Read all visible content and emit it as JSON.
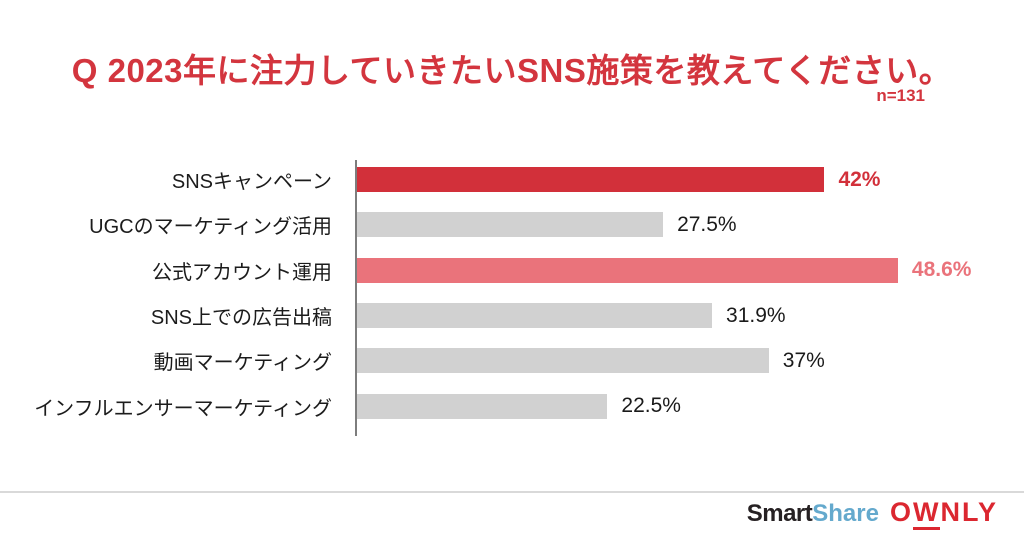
{
  "header": {
    "title": "Q 2023年に注力していきたいSNS施策を教えてください。",
    "title_color": "#d3353e",
    "sample_size": "n=131"
  },
  "chart_data": {
    "type": "bar",
    "orientation": "horizontal",
    "title": "Q 2023年に注力していきたいSNS施策を教えてください。",
    "sample_size": "n=131",
    "categories": [
      "SNSキャンペーン",
      "UGCのマーケティング活用",
      "公式アカウント運用",
      "SNS上での広告出稿",
      "動画マーケティング",
      "インフルエンサーマーケティング"
    ],
    "values": [
      42,
      27.5,
      48.6,
      31.9,
      37,
      22.5
    ],
    "value_labels": [
      "42%",
      "27.5%",
      "48.6%",
      "31.9%",
      "37%",
      "22.5%"
    ],
    "unit": "%",
    "xlim": [
      0,
      60
    ],
    "grid": false,
    "legend": false,
    "bar_colors": [
      "#d2303a",
      "#d1d1d1",
      "#ea737b",
      "#d1d1d1",
      "#d1d1d1",
      "#d1d1d1"
    ],
    "value_label_colors": [
      "#d2303a",
      "#1a1a1a",
      "#ea737b",
      "#1a1a1a",
      "#1a1a1a",
      "#1a1a1a"
    ],
    "value_label_bold": [
      true,
      false,
      true,
      false,
      false,
      false
    ]
  },
  "footer": {
    "logo": {
      "smart": "Smart",
      "share": "Share",
      "ownly_o": "O",
      "ownly_w": "W",
      "ownly_rest": "NLY",
      "smart_color": "#262123",
      "share_color": "#64a9cd",
      "ownly_color": "#db2730"
    }
  }
}
